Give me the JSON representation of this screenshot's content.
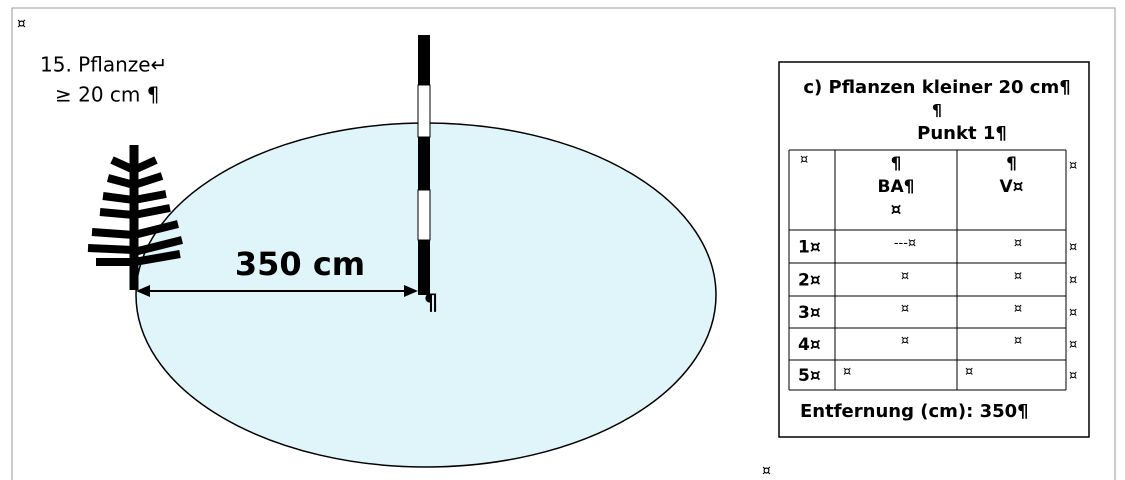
{
  "page_marks": {
    "top_left": "¤",
    "bottom": "¤"
  },
  "label": {
    "line1": "15. Pflanze↵",
    "line2": "≥ 20 cm  ¶"
  },
  "distance_label": "350 cm",
  "pole_mark": "¶",
  "table": {
    "title": "c) Pflanzen kleiner 20 cm¶",
    "title_mark": "¶",
    "subtitle": "Punkt 1¶",
    "header": [
      [
        "¤"
      ],
      [
        "¶",
        "BA¶",
        "¤"
      ],
      [
        "¶",
        "V¤"
      ]
    ],
    "header_end": "¤",
    "rows": [
      [
        "1¤",
        "---¤",
        "¤",
        "¤"
      ],
      [
        "2¤",
        "¤",
        "¤",
        "¤"
      ],
      [
        "3¤",
        "¤",
        "¤",
        "¤"
      ],
      [
        "4¤",
        "¤",
        "¤",
        "¤"
      ],
      [
        "5¤",
        "¤",
        "¤",
        "¤"
      ]
    ],
    "footer": "Entfernung (cm):  350¶"
  }
}
